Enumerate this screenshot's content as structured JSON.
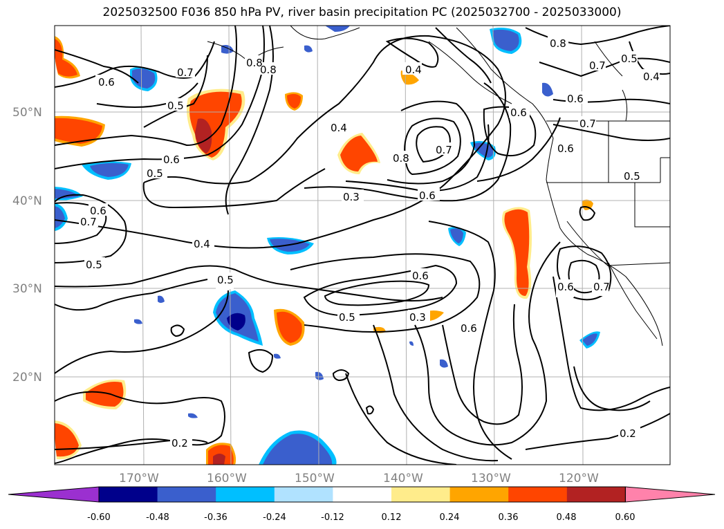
{
  "title": "2025032500 F036 850 hPa PV, river basin precipitation PC (2025032700 - 2025033000)",
  "lat_labels": [
    "50°N",
    "40°N",
    "30°N",
    "20°N"
  ],
  "lon_labels": [
    "170°W",
    "160°W",
    "150°W",
    "140°W",
    "130°W",
    "120°W"
  ],
  "colorbar": {
    "ticks": [
      "-0.60",
      "-0.48",
      "-0.36",
      "-0.24",
      "-0.12",
      "0.12",
      "0.24",
      "0.36",
      "0.48",
      "0.60"
    ],
    "colors": [
      "#9b30d0",
      "#00008b",
      "#3a5fcd",
      "#00bfff",
      "#b0e2ff",
      "#ffffff",
      "#ffec8b",
      "#ffa500",
      "#ff4500",
      "#b22222",
      "#ff82ab"
    ]
  },
  "contour_labels": [
    "0.6",
    "0.7",
    "0.8",
    "0.8",
    "0.4",
    "0.8",
    "0.5",
    "0.7",
    "0.5",
    "0.4",
    "0.6",
    "0.5",
    "0.6",
    "0.4",
    "0.6",
    "0.8",
    "0.7",
    "0.6",
    "0.6",
    "0.7",
    "0.5",
    "0.6",
    "0.7",
    "0.3",
    "0.6",
    "0.4",
    "0.5",
    "0.5",
    "0.6",
    "0.3",
    "0.5",
    "0.6",
    "0.7",
    "0.2",
    "0.2"
  ],
  "colors": {
    "contour": "#000000",
    "grid": "#b0b0b0",
    "coast": "#000000"
  }
}
